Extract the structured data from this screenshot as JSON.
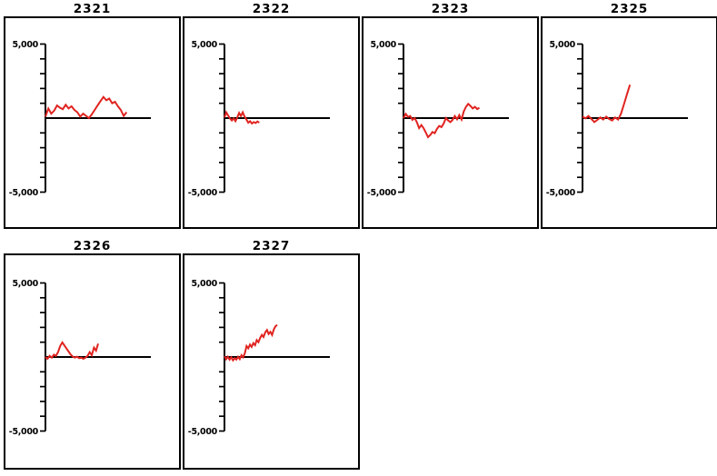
{
  "page": {
    "background": "#ffffff"
  },
  "colors": {
    "series": "#e02420",
    "axis": "#000000",
    "text": "#000000"
  },
  "chart_data": [
    {
      "type": "line",
      "title": "2321",
      "ylim": [
        -5000,
        5000
      ],
      "ytick_interval": 1000,
      "ytick_labels": [
        "5,000",
        "-5,000"
      ],
      "x_fraction": 0.77,
      "values": [
        100,
        650,
        300,
        500,
        850,
        700,
        600,
        900,
        650,
        800,
        550,
        400,
        100,
        300,
        150,
        0,
        250,
        550,
        850,
        1150,
        1430,
        1200,
        1320,
        1000,
        1100,
        800,
        550,
        150,
        400
      ]
    },
    {
      "type": "line",
      "title": "2322",
      "ylim": [
        -5000,
        5000
      ],
      "ytick_interval": 1000,
      "ytick_labels": [
        "5,000",
        "-5,000"
      ],
      "x_fraction": 0.33,
      "values": [
        40,
        390,
        180,
        -20,
        -160,
        -20,
        -210,
        40,
        350,
        140,
        390,
        100,
        -100,
        -310,
        -210,
        -370,
        -270,
        -330,
        -230,
        -310
      ]
    },
    {
      "type": "line",
      "title": "2323",
      "ylim": [
        -5000,
        5000
      ],
      "ytick_interval": 1000,
      "ytick_labels": [
        "5,000",
        "-5,000"
      ],
      "x_fraction": 0.72,
      "values": [
        0,
        280,
        80,
        140,
        -120,
        0,
        -270,
        -680,
        -470,
        -680,
        -980,
        -1290,
        -1140,
        -940,
        -1020,
        -730,
        -530,
        -610,
        -370,
        0,
        -160,
        -270,
        -120,
        140,
        -80,
        200,
        -100,
        450,
        760,
        960,
        820,
        650,
        760,
        610,
        700
      ]
    },
    {
      "type": "line",
      "title": "2325",
      "ylim": [
        -5000,
        5000
      ],
      "ytick_interval": 1000,
      "ytick_labels": [
        "5,000",
        "-5,000"
      ],
      "x_fraction": 0.45,
      "values": [
        100,
        -20,
        140,
        -60,
        -270,
        -120,
        40,
        -100,
        100,
        -60,
        -160,
        40,
        -100,
        300,
        950,
        1600,
        2250
      ]
    },
    {
      "type": "line",
      "title": "2326",
      "ylim": [
        -5000,
        5000
      ],
      "ytick_interval": 1000,
      "ytick_labels": [
        "5,000",
        "-5,000"
      ],
      "x_fraction": 0.5,
      "values": [
        0,
        -120,
        80,
        -40,
        160,
        80,
        330,
        740,
        980,
        780,
        570,
        370,
        160,
        20,
        -40,
        20,
        -80,
        -40,
        -120,
        -40,
        80,
        330,
        120,
        630,
        430,
        900
      ]
    },
    {
      "type": "line",
      "title": "2327",
      "ylim": [
        -5000,
        5000
      ],
      "ytick_interval": 1000,
      "ytick_labels": [
        "5,000",
        "-5,000"
      ],
      "x_fraction": 0.5,
      "values": [
        50,
        -150,
        20,
        -180,
        -20,
        -230,
        -80,
        -180,
        20,
        -140,
        120,
        -20,
        270,
        740,
        590,
        840,
        680,
        940,
        800,
        1150,
        1000,
        1290,
        1490,
        1350,
        1660,
        1820,
        1550,
        1700,
        1490,
        1860,
        2070,
        2170
      ]
    }
  ]
}
